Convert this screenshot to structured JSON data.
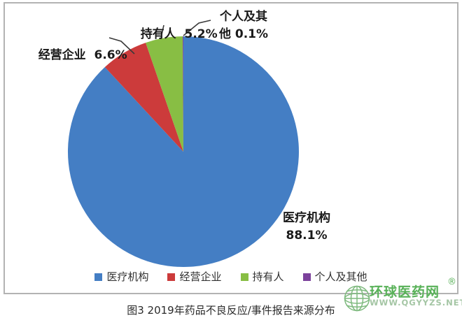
{
  "figure": {
    "caption": "图3 2019年药品不良反应/事件报告来源分布"
  },
  "chart_data": {
    "type": "pie",
    "title": "图3 2019年药品不良反应/事件报告来源分布",
    "categories": [
      "医疗机构",
      "经营企业",
      "持有人",
      "个人及其他"
    ],
    "values": [
      88.1,
      6.6,
      5.2,
      0.1
    ],
    "unit": "%",
    "colors": [
      "#447EC4",
      "#CC3B3B",
      "#88BE44",
      "#7C429C"
    ],
    "start_angle": "top",
    "direction": "clockwise",
    "legend_position": "bottom",
    "data_labels": {
      "medical": {
        "line1": "医疗机构",
        "line2": "88.1%"
      },
      "business": {
        "text": "经营企业  6.6%"
      },
      "holder": {
        "text": "持有人  5.2%"
      },
      "individual": {
        "line1": "个人及其",
        "line2": "他 0.1%"
      }
    }
  },
  "legend": {
    "items": [
      {
        "label": "医疗机构",
        "color": "#447EC4"
      },
      {
        "label": "经营企业",
        "color": "#CC3B3B"
      },
      {
        "label": "持有人",
        "color": "#88BE44"
      },
      {
        "label": "个人及其他",
        "color": "#7C429C"
      }
    ]
  },
  "watermark": {
    "site_name": "环球医药网",
    "registered_mark": "®",
    "url": "WWW.QGYYZS.NET"
  }
}
